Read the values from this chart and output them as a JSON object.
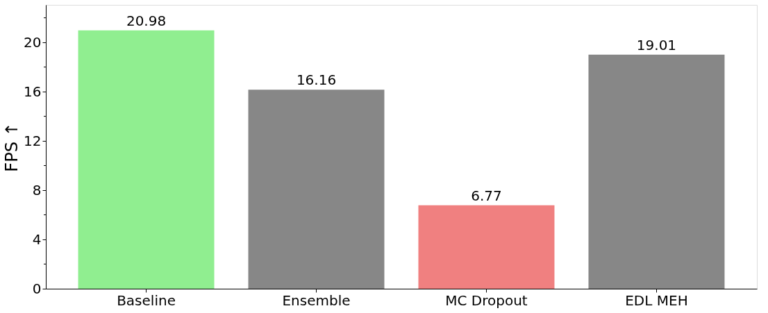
{
  "chart_data": {
    "type": "bar",
    "ylabel": "FPS ↑",
    "categories": [
      "Baseline",
      "Ensemble",
      "MC Dropout",
      "EDL MEH"
    ],
    "values": [
      20.98,
      16.16,
      6.77,
      19.01
    ],
    "colors": [
      "#90ee90",
      "#878787",
      "#f08080",
      "#878787"
    ],
    "ylim": [
      0,
      23.05
    ],
    "yticks": [
      0,
      {
        "value": 2,
        "label": null
      },
      4,
      {
        "value": 6,
        "label": null
      },
      8,
      {
        "value": 10,
        "label": null
      },
      12,
      {
        "value": 14,
        "label": null
      },
      16,
      {
        "value": 18,
        "label": null
      },
      20,
      {
        "value": 22,
        "label": null
      }
    ],
    "data_labels": true,
    "grid": false
  }
}
